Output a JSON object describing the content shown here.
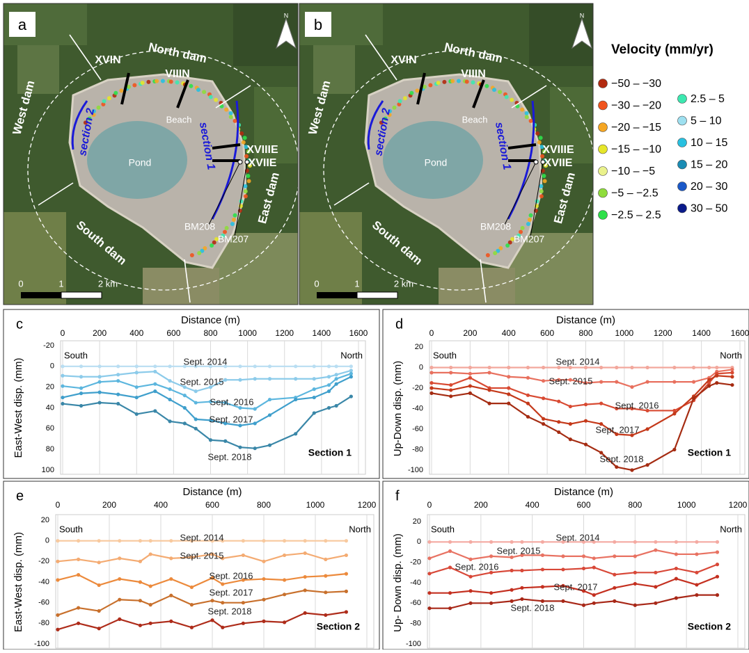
{
  "maps": [
    {
      "panel": "a",
      "north": "N",
      "labels": [
        "North dam",
        "XVIN",
        "VIIIN",
        "Beach",
        "Pond",
        "West dam",
        "section 2",
        "section 1",
        "XVIIIE",
        "XVIIE",
        "East dam",
        "South dam",
        "BM208",
        "BM207"
      ],
      "scale": [
        "0",
        "1",
        "2 km"
      ]
    },
    {
      "panel": "b",
      "north": "N",
      "labels": [
        "North dam",
        "XVIN",
        "VIIIN",
        "Beach",
        "Pond",
        "West dam",
        "section 2",
        "section 1",
        "XVIIIE",
        "XVIIE",
        "East dam",
        "South dam",
        "BM208",
        "BM207"
      ],
      "scale": [
        "0",
        "1",
        "2 km"
      ]
    }
  ],
  "legend": {
    "title": "Velocity (mm/yr)",
    "items": [
      {
        "label": "−50 – −30",
        "color": "#b22a10"
      },
      {
        "label": "−30 – −20",
        "color": "#f0541e"
      },
      {
        "label": "−20 – −15",
        "color": "#f5a623"
      },
      {
        "label": "−15 – −10",
        "color": "#e6e62a"
      },
      {
        "label": "−10 – −5",
        "color": "#eaf28c"
      },
      {
        "label": "−5 – −2.5",
        "color": "#8fdc3c"
      },
      {
        "label": "−2.5 – 2.5",
        "color": "#2ee04a"
      },
      {
        "label": "2.5 – 5",
        "color": "#3ce8b0"
      },
      {
        "label": "5 – 10",
        "color": "#9ee0f0"
      },
      {
        "label": "10 – 15",
        "color": "#28c0e0"
      },
      {
        "label": "15 – 20",
        "color": "#1a8cb4"
      },
      {
        "label": "20 – 30",
        "color": "#1a58c8"
      },
      {
        "label": "30 – 50",
        "color": "#0a1a8a"
      }
    ]
  },
  "chart_data": [
    {
      "type": "line",
      "panel": "c",
      "xlabel": "Distance (m)",
      "ylabel": "East-West disp. (mm)",
      "annotations": [
        "South",
        "North",
        "Section 1"
      ],
      "x": [
        0,
        100,
        200,
        300,
        400,
        500,
        580,
        660,
        720,
        800,
        880,
        960,
        1040,
        1120,
        1260,
        1360,
        1440,
        1480,
        1560
      ],
      "xlim": [
        0,
        1600
      ],
      "xticks": [
        0,
        200,
        400,
        600,
        800,
        1000,
        1200,
        1400,
        1600
      ],
      "ylim": [
        -20,
        100
      ],
      "y_reversed": true,
      "yticks": [
        -20,
        0,
        20,
        40,
        60,
        80,
        100
      ],
      "grid": true,
      "series": [
        {
          "name": "Sept. 2014",
          "color": "#b9def2",
          "values": [
            0,
            0,
            0,
            0,
            0,
            0,
            0,
            0,
            0,
            0,
            0,
            0,
            0,
            0,
            0,
            0,
            0,
            0,
            0
          ]
        },
        {
          "name": "Sept. 2015",
          "color": "#8ccbea",
          "values": [
            9,
            10,
            10,
            8,
            6,
            5,
            14,
            20,
            24,
            20,
            13,
            13,
            12,
            12,
            12,
            12,
            10,
            8,
            4
          ]
        },
        {
          "name": "Sept. 2016",
          "color": "#5cb6de",
          "values": [
            19,
            21,
            15,
            14,
            20,
            17,
            22,
            28,
            35,
            34,
            35,
            40,
            41,
            32,
            30,
            22,
            18,
            12,
            7
          ]
        },
        {
          "name": "Sept. 2017",
          "color": "#3f9fcc",
          "values": [
            30,
            26,
            25,
            27,
            30,
            24,
            32,
            40,
            51,
            52,
            55,
            57,
            55,
            47,
            32,
            30,
            24,
            17,
            10
          ]
        },
        {
          "name": "Sept. 2018",
          "color": "#3a87a8",
          "values": [
            36,
            38,
            35,
            36,
            46,
            43,
            53,
            55,
            60,
            71,
            72,
            78,
            79,
            76,
            65,
            45,
            40,
            38,
            29
          ]
        }
      ]
    },
    {
      "type": "line",
      "panel": "d",
      "xlabel": "Distance (m)",
      "ylabel": "Up-Down disp. (mm)",
      "annotations": [
        "South",
        "North",
        "Section 1"
      ],
      "x": [
        0,
        100,
        200,
        300,
        400,
        500,
        580,
        660,
        720,
        800,
        880,
        960,
        1040,
        1120,
        1260,
        1360,
        1440,
        1480,
        1560
      ],
      "xlim": [
        0,
        1600
      ],
      "xticks": [
        0,
        200,
        400,
        600,
        800,
        1000,
        1200,
        1400,
        1600
      ],
      "ylim": [
        -100,
        20
      ],
      "y_reversed": false,
      "yticks": [
        -100,
        -80,
        -60,
        -40,
        -20,
        0,
        20
      ],
      "grid": true,
      "series": [
        {
          "name": "Sept. 2014",
          "color": "#f2a79c",
          "values": [
            0,
            0,
            0,
            0,
            0,
            0,
            0,
            0,
            0,
            0,
            0,
            0,
            0,
            0,
            0,
            0,
            0,
            0,
            0
          ]
        },
        {
          "name": "Sept. 2015",
          "color": "#e8705e",
          "values": [
            -5,
            -5,
            -6,
            -5,
            -9,
            -10,
            -13,
            -12,
            -12,
            -15,
            -14,
            -14,
            -19,
            -14,
            -14,
            -14,
            -10,
            -4,
            -2
          ]
        },
        {
          "name": "Sept. 2016",
          "color": "#d84a32",
          "values": [
            -15,
            -17,
            -10,
            -20,
            -20,
            -27,
            -30,
            -33,
            -38,
            -36,
            -35,
            -40,
            -40,
            -42,
            -42,
            -32,
            -15,
            -6,
            -5
          ]
        },
        {
          "name": "Sept. 2017",
          "color": "#c4391a",
          "values": [
            -20,
            -22,
            -18,
            -22,
            -26,
            -35,
            -50,
            -53,
            -55,
            -52,
            -55,
            -65,
            -66,
            -60,
            -45,
            -28,
            -12,
            -8,
            -9
          ]
        },
        {
          "name": "Sept. 2018",
          "color": "#a52c12",
          "values": [
            -25,
            -28,
            -25,
            -35,
            -35,
            -48,
            -55,
            -63,
            -70,
            -75,
            -83,
            -97,
            -100,
            -95,
            -80,
            -30,
            -18,
            -15,
            -17
          ]
        }
      ]
    },
    {
      "type": "line",
      "panel": "e",
      "xlabel": "Distance (m)",
      "ylabel": "East-West disp. (mm)",
      "annotations": [
        "South",
        "North",
        "Section 2"
      ],
      "x": [
        0,
        80,
        160,
        240,
        320,
        360,
        440,
        520,
        600,
        640,
        720,
        800,
        880,
        960,
        1040,
        1120
      ],
      "xlim": [
        0,
        1200
      ],
      "xticks": [
        0,
        200,
        400,
        600,
        800,
        1000,
        1200
      ],
      "ylim": [
        -100,
        20
      ],
      "y_reversed": false,
      "yticks": [
        -100,
        -80,
        -60,
        -40,
        -20,
        0,
        20
      ],
      "grid": true,
      "series": [
        {
          "name": "Sept. 2014",
          "color": "#f8c99e",
          "values": [
            0,
            0,
            0,
            0,
            0,
            0,
            0,
            0,
            0,
            0,
            0,
            0,
            0,
            0,
            0,
            0
          ]
        },
        {
          "name": "Sept. 2015",
          "color": "#f4ab72",
          "values": [
            -20,
            -18,
            -21,
            -17,
            -20,
            -13,
            -17,
            -16,
            -13,
            -17,
            -14,
            -20,
            -14,
            -12,
            -18,
            -14
          ]
        },
        {
          "name": "Sept. 2016",
          "color": "#ec8a3c",
          "values": [
            -38,
            -33,
            -43,
            -37,
            -40,
            -44,
            -37,
            -45,
            -36,
            -42,
            -38,
            -37,
            -38,
            -35,
            -34,
            -32
          ]
        },
        {
          "name": "Sept. 2017",
          "color": "#c8702c",
          "values": [
            -72,
            -65,
            -68,
            -57,
            -58,
            -62,
            -53,
            -62,
            -58,
            -60,
            -60,
            -57,
            -52,
            -48,
            -50,
            -49
          ]
        },
        {
          "name": "Sept. 2018",
          "color": "#ae2c1a",
          "values": [
            -86,
            -80,
            -85,
            -76,
            -82,
            -80,
            -78,
            -84,
            -77,
            -84,
            -80,
            -78,
            -79,
            -70,
            -72,
            -69
          ]
        }
      ]
    },
    {
      "type": "line",
      "panel": "f",
      "xlabel": "Distance (m)",
      "ylabel": "Up- Down disp. (mm)",
      "annotations": [
        "South",
        "North",
        "Section 2"
      ],
      "x": [
        0,
        80,
        160,
        240,
        320,
        360,
        440,
        520,
        600,
        640,
        720,
        800,
        880,
        960,
        1040,
        1120
      ],
      "xlim": [
        0,
        1200
      ],
      "xticks": [
        0,
        200,
        400,
        600,
        800,
        1000,
        1200
      ],
      "ylim": [
        -100,
        20
      ],
      "y_reversed": false,
      "yticks": [
        -100,
        -80,
        -60,
        -40,
        -20,
        0,
        20
      ],
      "grid": true,
      "series": [
        {
          "name": "Sept. 2014",
          "color": "#f4aaa2",
          "values": [
            0,
            0,
            0,
            0,
            0,
            0,
            0,
            0,
            0,
            0,
            0,
            0,
            0,
            0,
            0,
            0
          ]
        },
        {
          "name": "Sept. 2015",
          "color": "#e87262",
          "values": [
            -16,
            -9,
            -17,
            -14,
            -15,
            -13,
            -13,
            -14,
            -14,
            -16,
            -14,
            -14,
            -8,
            -12,
            -12,
            -10
          ]
        },
        {
          "name": "Sept. 2016",
          "color": "#d84838",
          "values": [
            -31,
            -25,
            -34,
            -30,
            -28,
            -28,
            -27,
            -27,
            -26,
            -25,
            -32,
            -30,
            -30,
            -26,
            -30,
            -22
          ]
        },
        {
          "name": "Sept. 2017",
          "color": "#c43020",
          "values": [
            -50,
            -50,
            -48,
            -50,
            -47,
            -45,
            -44,
            -43,
            -48,
            -52,
            -45,
            -41,
            -44,
            -36,
            -42,
            -34
          ]
        },
        {
          "name": "Sept. 2018",
          "color": "#a82818",
          "values": [
            -65,
            -65,
            -60,
            -60,
            -58,
            -56,
            -58,
            -58,
            -62,
            -60,
            -58,
            -62,
            -60,
            -55,
            -52,
            -52
          ]
        }
      ]
    }
  ]
}
